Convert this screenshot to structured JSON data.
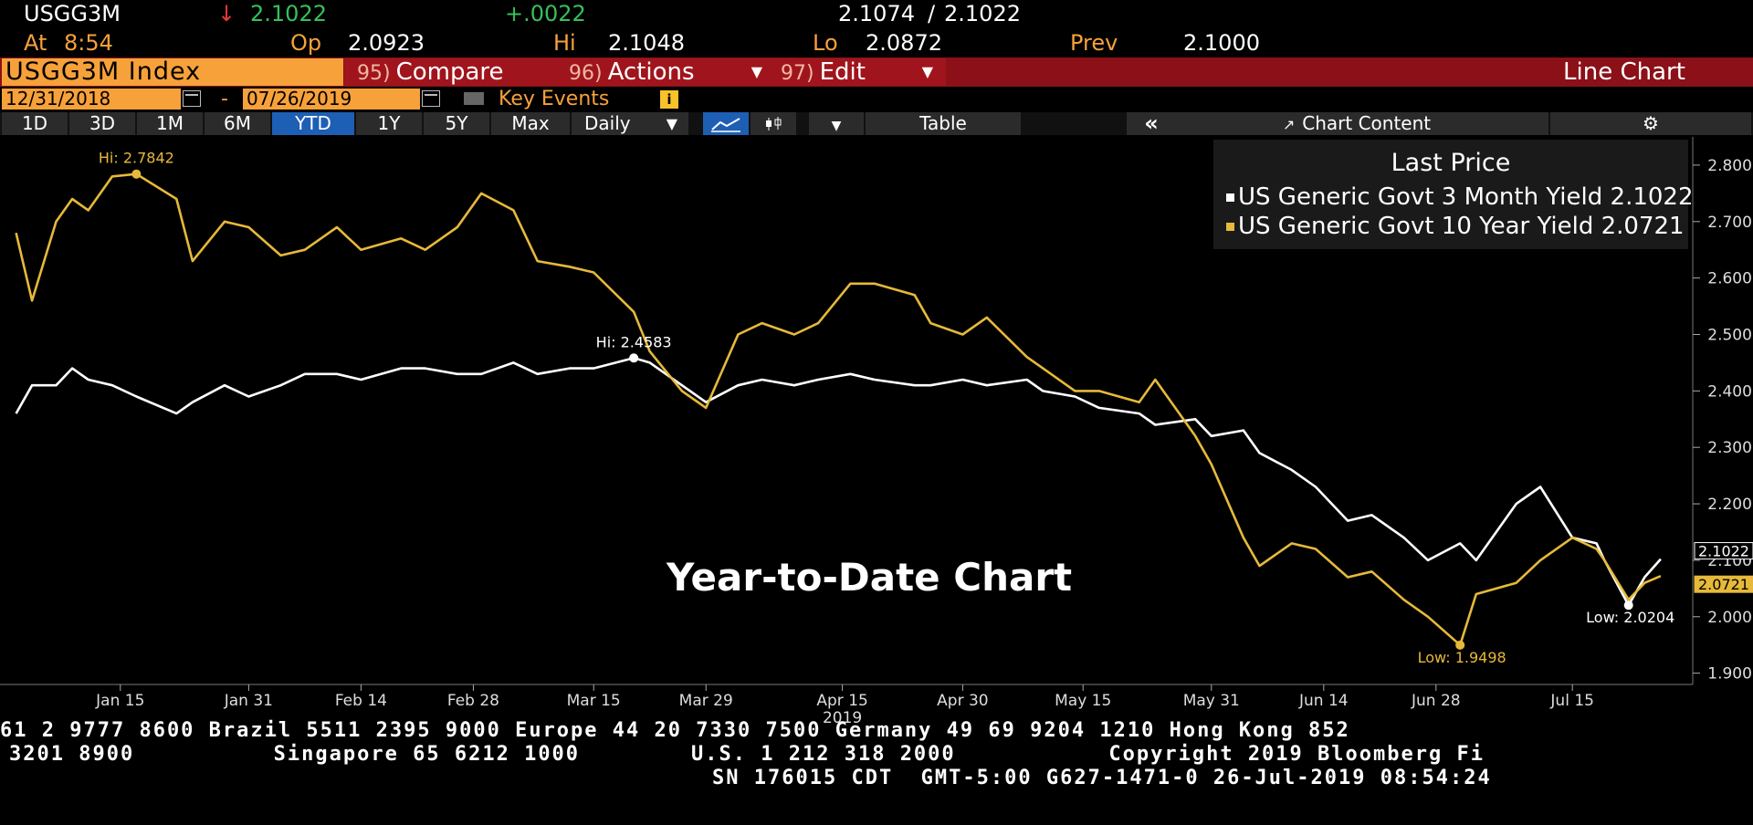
{
  "quote": {
    "ticker": "USGG3M",
    "arrow": "↓",
    "last": "2.1022",
    "change": "+.0022",
    "bid": "2.1074",
    "separator": "/",
    "ask": "2.1022",
    "time_label": "At",
    "time": "8:54",
    "open_label": "Op",
    "open": "2.0923",
    "high_label": "Hi",
    "high": "2.1048",
    "low_label": "Lo",
    "low": "2.0872",
    "prev_label": "Prev",
    "prev": "2.1000"
  },
  "command_bar": {
    "security": "USGG3M Index",
    "compare_num": "95)",
    "compare": "Compare",
    "actions_num": "96)",
    "actions": "Actions",
    "edit_num": "97)",
    "edit": "Edit",
    "chart_type": "Line Chart"
  },
  "range": {
    "start": "12/31/2018",
    "dash": "-",
    "end": "07/26/2019",
    "key_events": "Key Events",
    "info": "i"
  },
  "tabs": {
    "periods": [
      "1D",
      "3D",
      "1M",
      "6M",
      "YTD",
      "1Y",
      "5Y",
      "Max"
    ],
    "selected": "YTD",
    "frequency": "Daily",
    "table": "Table",
    "collapse": "«",
    "chart_content": "Chart Content"
  },
  "overlay_text": "Year-to-Date Chart",
  "colors": {
    "three_month": "#ffffff",
    "ten_year": "#e6b93a",
    "accent_orange": "#f7a13a",
    "command_bar": "#8b1017",
    "selected_tab": "#1d5fb4"
  },
  "chart_data": {
    "type": "line",
    "legend_title": "Last Price",
    "legend_placement": "top-right",
    "year_label": "2019",
    "x": [
      "2019-01-02",
      "2019-01-04",
      "2019-01-07",
      "2019-01-09",
      "2019-01-11",
      "2019-01-14",
      "2019-01-17",
      "2019-01-22",
      "2019-01-24",
      "2019-01-28",
      "2019-01-31",
      "2019-02-04",
      "2019-02-07",
      "2019-02-11",
      "2019-02-14",
      "2019-02-19",
      "2019-02-22",
      "2019-02-26",
      "2019-03-01",
      "2019-03-05",
      "2019-03-08",
      "2019-03-12",
      "2019-03-15",
      "2019-03-20",
      "2019-03-22",
      "2019-03-26",
      "2019-03-29",
      "2019-04-02",
      "2019-04-05",
      "2019-04-09",
      "2019-04-12",
      "2019-04-16",
      "2019-04-19",
      "2019-04-24",
      "2019-04-26",
      "2019-04-30",
      "2019-05-03",
      "2019-05-08",
      "2019-05-10",
      "2019-05-14",
      "2019-05-17",
      "2019-05-22",
      "2019-05-24",
      "2019-05-29",
      "2019-05-31",
      "2019-06-04",
      "2019-06-06",
      "2019-06-10",
      "2019-06-13",
      "2019-06-17",
      "2019-06-20",
      "2019-06-24",
      "2019-06-27",
      "2019-07-01",
      "2019-07-03",
      "2019-07-08",
      "2019-07-11",
      "2019-07-15",
      "2019-07-18",
      "2019-07-19",
      "2019-07-22",
      "2019-07-24",
      "2019-07-26"
    ],
    "series": [
      {
        "name": "US Generic Govt 3 Month Yield",
        "last": "2.1022",
        "values": [
          2.36,
          2.41,
          2.41,
          2.44,
          2.42,
          2.41,
          2.39,
          2.36,
          2.38,
          2.41,
          2.39,
          2.41,
          2.43,
          2.43,
          2.42,
          2.44,
          2.44,
          2.43,
          2.43,
          2.45,
          2.43,
          2.44,
          2.44,
          2.4583,
          2.45,
          2.41,
          2.38,
          2.41,
          2.42,
          2.41,
          2.42,
          2.43,
          2.42,
          2.41,
          2.41,
          2.42,
          2.41,
          2.42,
          2.4,
          2.39,
          2.37,
          2.36,
          2.34,
          2.35,
          2.32,
          2.33,
          2.29,
          2.26,
          2.23,
          2.17,
          2.18,
          2.14,
          2.1,
          2.13,
          2.1,
          2.2,
          2.23,
          2.14,
          2.13,
          2.1,
          2.0204,
          2.07,
          2.1022
        ],
        "hi": {
          "label": "Hi: 2.4583",
          "value": 2.4583
        },
        "low": {
          "label": "Low: 2.0204",
          "value": 2.0204
        }
      },
      {
        "name": "US Generic Govt 10 Year Yield",
        "last": "2.0721",
        "values": [
          2.68,
          2.56,
          2.7,
          2.74,
          2.72,
          2.78,
          2.7842,
          2.74,
          2.63,
          2.7,
          2.69,
          2.64,
          2.65,
          2.69,
          2.65,
          2.67,
          2.65,
          2.69,
          2.75,
          2.72,
          2.63,
          2.62,
          2.61,
          2.54,
          2.47,
          2.4,
          2.37,
          2.5,
          2.52,
          2.5,
          2.52,
          2.59,
          2.59,
          2.57,
          2.52,
          2.5,
          2.53,
          2.46,
          2.44,
          2.4,
          2.4,
          2.38,
          2.42,
          2.32,
          2.27,
          2.14,
          2.09,
          2.13,
          2.12,
          2.07,
          2.08,
          2.03,
          2.0,
          1.9498,
          2.04,
          2.06,
          2.1,
          2.14,
          2.12,
          2.1,
          2.03,
          2.06,
          2.0721
        ],
        "hi": {
          "label": "Hi: 2.7842",
          "value": 2.7842
        },
        "low": {
          "label": "Low: 1.9498",
          "value": 1.9498
        }
      }
    ],
    "x_tick_labels": [
      {
        "label": "Jan 15",
        "date": "2019-01-15"
      },
      {
        "label": "Jan 31",
        "date": "2019-01-31"
      },
      {
        "label": "Feb 14",
        "date": "2019-02-14"
      },
      {
        "label": "Feb 28",
        "date": "2019-02-28"
      },
      {
        "label": "Mar 15",
        "date": "2019-03-15"
      },
      {
        "label": "Mar 29",
        "date": "2019-03-29"
      },
      {
        "label": "Apr 15",
        "date": "2019-04-15"
      },
      {
        "label": "Apr 30",
        "date": "2019-04-30"
      },
      {
        "label": "May 15",
        "date": "2019-05-15"
      },
      {
        "label": "May 31",
        "date": "2019-05-31"
      },
      {
        "label": "Jun 14",
        "date": "2019-06-14"
      },
      {
        "label": "Jun 28",
        "date": "2019-06-28"
      },
      {
        "label": "Jul 15",
        "date": "2019-07-15"
      }
    ],
    "y_ticks": [
      "1.9000",
      "2.0000",
      "2.1000",
      "2.2000",
      "2.3000",
      "2.4000",
      "2.5000",
      "2.6000",
      "2.7000",
      "2.8000"
    ],
    "ylim": [
      1.88,
      2.85
    ],
    "xlim": [
      "2018-12-31",
      "2019-07-30"
    ],
    "grid": false
  },
  "footer": {
    "line1": "61 2 9777 8600 Brazil 5511 2395 9000 Europe 44 20 7330 7500 Germany 49 69 9204 1210 Hong Kong 852",
    "line2": "3201 8900          Singapore 65 6212 1000        U.S. 1 212 318 2000           Copyright 2019 Bloomberg Fi",
    "line3": "SN 176015 CDT  GMT-5:00 G627-1471-0 26-Jul-2019 08:54:24"
  }
}
